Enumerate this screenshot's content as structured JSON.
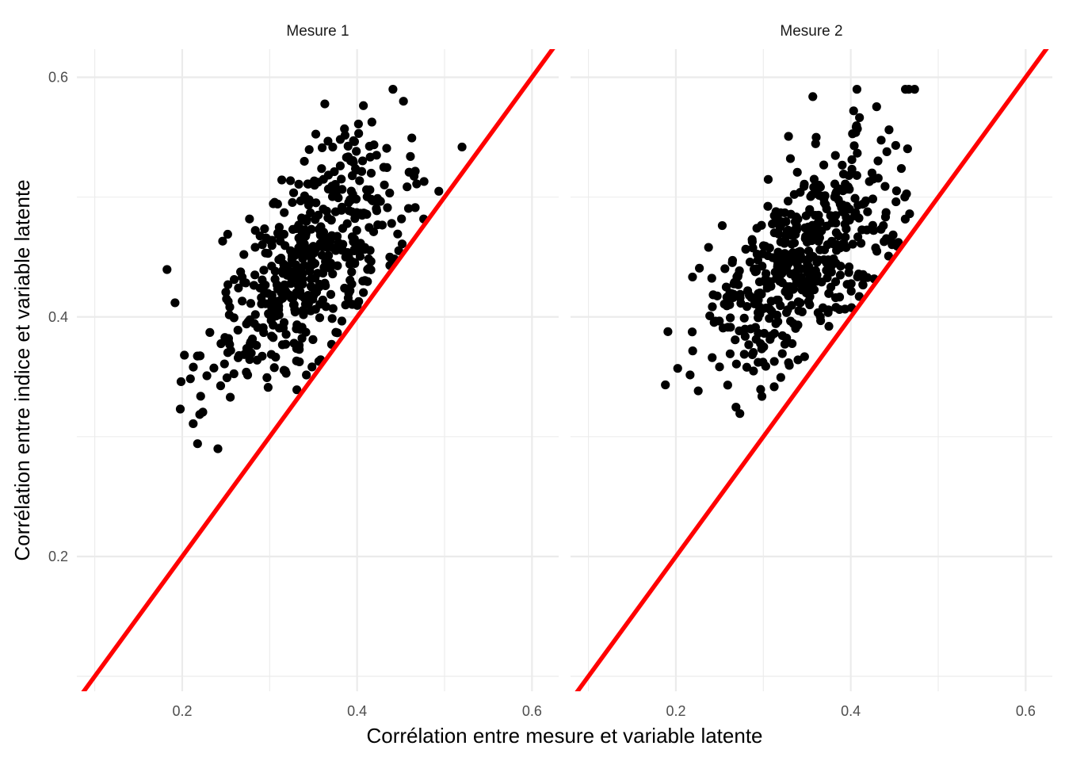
{
  "chart_data": {
    "type": "scatter",
    "facets": [
      {
        "label": "Mesure 1",
        "n_points": 500,
        "x_mean": 0.345,
        "x_sd": 0.055,
        "y_mean": 0.445,
        "y_sd": 0.052,
        "correlation": 0.62,
        "seed": 20240501
      },
      {
        "label": "Mesure 2",
        "n_points": 500,
        "x_mean": 0.345,
        "x_sd": 0.055,
        "y_mean": 0.45,
        "y_sd": 0.052,
        "correlation": 0.62,
        "seed": 91827364
      }
    ],
    "reference_line": {
      "intercept": 0,
      "slope": 1,
      "color": "#ff0000"
    },
    "point_color": "#000000",
    "xlim": [
      0.0795,
      0.6305
    ],
    "ylim": [
      0.0875,
      0.6235
    ],
    "x_ticks": [
      0.2,
      0.4,
      0.6
    ],
    "x_tick_labels": [
      "0.2",
      "0.4",
      "0.6"
    ],
    "y_ticks": [
      0.2,
      0.4,
      0.6
    ],
    "y_tick_labels": [
      "0.2",
      "0.4",
      "0.6"
    ],
    "x_minor_ticks": [
      0.1,
      0.3,
      0.5
    ],
    "y_minor_ticks": [
      0.1,
      0.3,
      0.5
    ],
    "xlabel": "Corrélation entre mesure et variable latente",
    "ylabel": "Corrélation entre indice et variable latente",
    "grid": true,
    "theme": "minimal"
  }
}
